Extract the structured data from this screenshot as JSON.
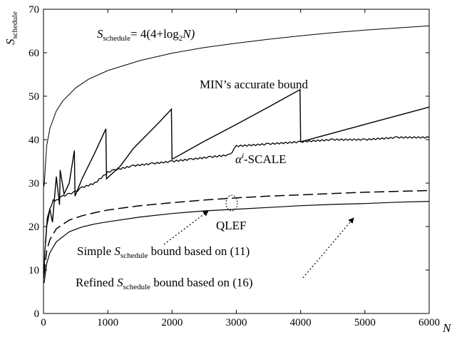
{
  "chart_data": {
    "type": "line",
    "xlabel": "N",
    "ylabel": {
      "main": "S",
      "sub": "schedule"
    },
    "xlim": [
      0,
      6000
    ],
    "ylim": [
      0,
      70
    ],
    "xticks": [
      0,
      1000,
      2000,
      3000,
      4000,
      5000,
      6000
    ],
    "yticks": [
      0,
      10,
      20,
      30,
      40,
      50,
      60,
      70
    ],
    "grid": false,
    "legend": "none",
    "series": [
      {
        "x": [
          10,
          50,
          100,
          200,
          300,
          500,
          700,
          1000,
          1500,
          2000,
          2500,
          3000,
          3500,
          4000,
          4500,
          5000,
          5500,
          6000
        ],
        "values": [
          29.3,
          38.6,
          42.6,
          46.6,
          48.9,
          51.9,
          53.9,
          55.9,
          58.2,
          59.9,
          61.2,
          62.2,
          63.1,
          63.9,
          64.6,
          65.2,
          65.7,
          66.2
        ]
      },
      {
        "x": [
          30,
          60,
          100,
          140,
          200,
          250,
          260,
          320,
          400,
          480,
          490,
          600,
          700,
          800,
          970,
          980,
          1200,
          1400,
          1600,
          1800,
          1990,
          2000,
          2500,
          3000,
          3500,
          3990,
          4000,
          4500,
          5000,
          5500,
          6000
        ],
        "values": [
          16,
          22,
          24,
          21,
          31.5,
          25,
          33,
          27.5,
          30,
          37.5,
          27,
          31,
          34,
          37,
          42.5,
          31,
          34,
          38,
          41,
          44,
          47,
          35.5,
          39.6,
          43.5,
          47.5,
          51.5,
          39.5,
          41.5,
          43.5,
          45.5,
          47.5
        ]
      },
      {
        "x": [
          5,
          20,
          50,
          100,
          150,
          200,
          300,
          400,
          500,
          600,
          800,
          1000,
          1100,
          1400,
          1700,
          2000,
          2300,
          2600,
          2900,
          3000,
          3500,
          4000,
          4500,
          5000,
          5500,
          6000
        ],
        "values": [
          8,
          14,
          20,
          24,
          26,
          26,
          27,
          27.5,
          28,
          29,
          30,
          32.5,
          33,
          34,
          34.5,
          35,
          35.5,
          36,
          36.5,
          38.5,
          39,
          39.5,
          40,
          40,
          40.5,
          40.5
        ]
      },
      {
        "x": [
          10,
          50,
          100,
          200,
          400,
          600,
          800,
          1000,
          1500,
          2000,
          2500,
          3000,
          3500,
          4000,
          4500,
          5000,
          5500,
          6000
        ],
        "values": [
          9,
          14.5,
          17,
          19.5,
          21.5,
          22.5,
          23.2,
          23.8,
          24.8,
          25.5,
          26.1,
          26.6,
          27,
          27.3,
          27.6,
          27.9,
          28.1,
          28.3
        ]
      },
      {
        "x": [
          10,
          50,
          100,
          200,
          400,
          600,
          800,
          1000,
          1500,
          2000,
          2500,
          3000,
          3500,
          4000,
          4500,
          5000,
          5500,
          6000
        ],
        "values": [
          7,
          11.5,
          14,
          16.5,
          18.8,
          19.9,
          20.6,
          21.1,
          22.2,
          23,
          23.6,
          24,
          24.4,
          24.8,
          25.1,
          25.3,
          25.6,
          25.8
        ]
      }
    ],
    "annotations": {
      "formula": {
        "main": "S",
        "sub": "schedule",
        "rest1": "= 4(4+log",
        "sub2": "2",
        "rest2": "N)"
      },
      "min_bound": "MIN’s accurate bound",
      "alpha_scale": {
        "alpha": "α",
        "sup": "i",
        "rest": "-SCALE"
      },
      "qlef": "QLEF",
      "simple": {
        "pre": "Simple ",
        "main": "S",
        "sub": "schedule",
        "post": " bound based on (11)"
      },
      "refined": {
        "pre": "Refined ",
        "main": "S",
        "sub": "schedule",
        "post": " bound based on (16)"
      }
    }
  }
}
